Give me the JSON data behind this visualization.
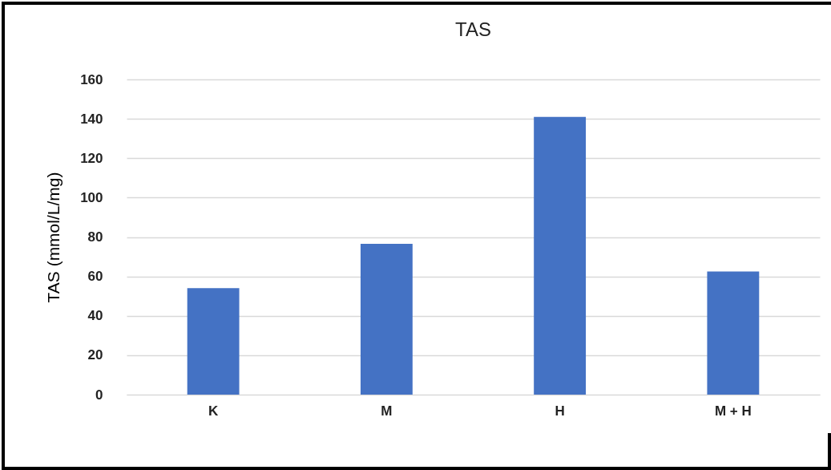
{
  "chart_data": {
    "type": "bar",
    "title": "TAS",
    "ylabel": "TAS (mmol/L/mg)",
    "categories": [
      "K",
      "M",
      "H",
      "M + H"
    ],
    "values": [
      54,
      76.5,
      141,
      62.5
    ],
    "color": "#4472c4",
    "ylim": [
      0,
      160
    ],
    "yticks": [
      0,
      20,
      40,
      60,
      80,
      100,
      120,
      140,
      160
    ],
    "grid": "y"
  }
}
